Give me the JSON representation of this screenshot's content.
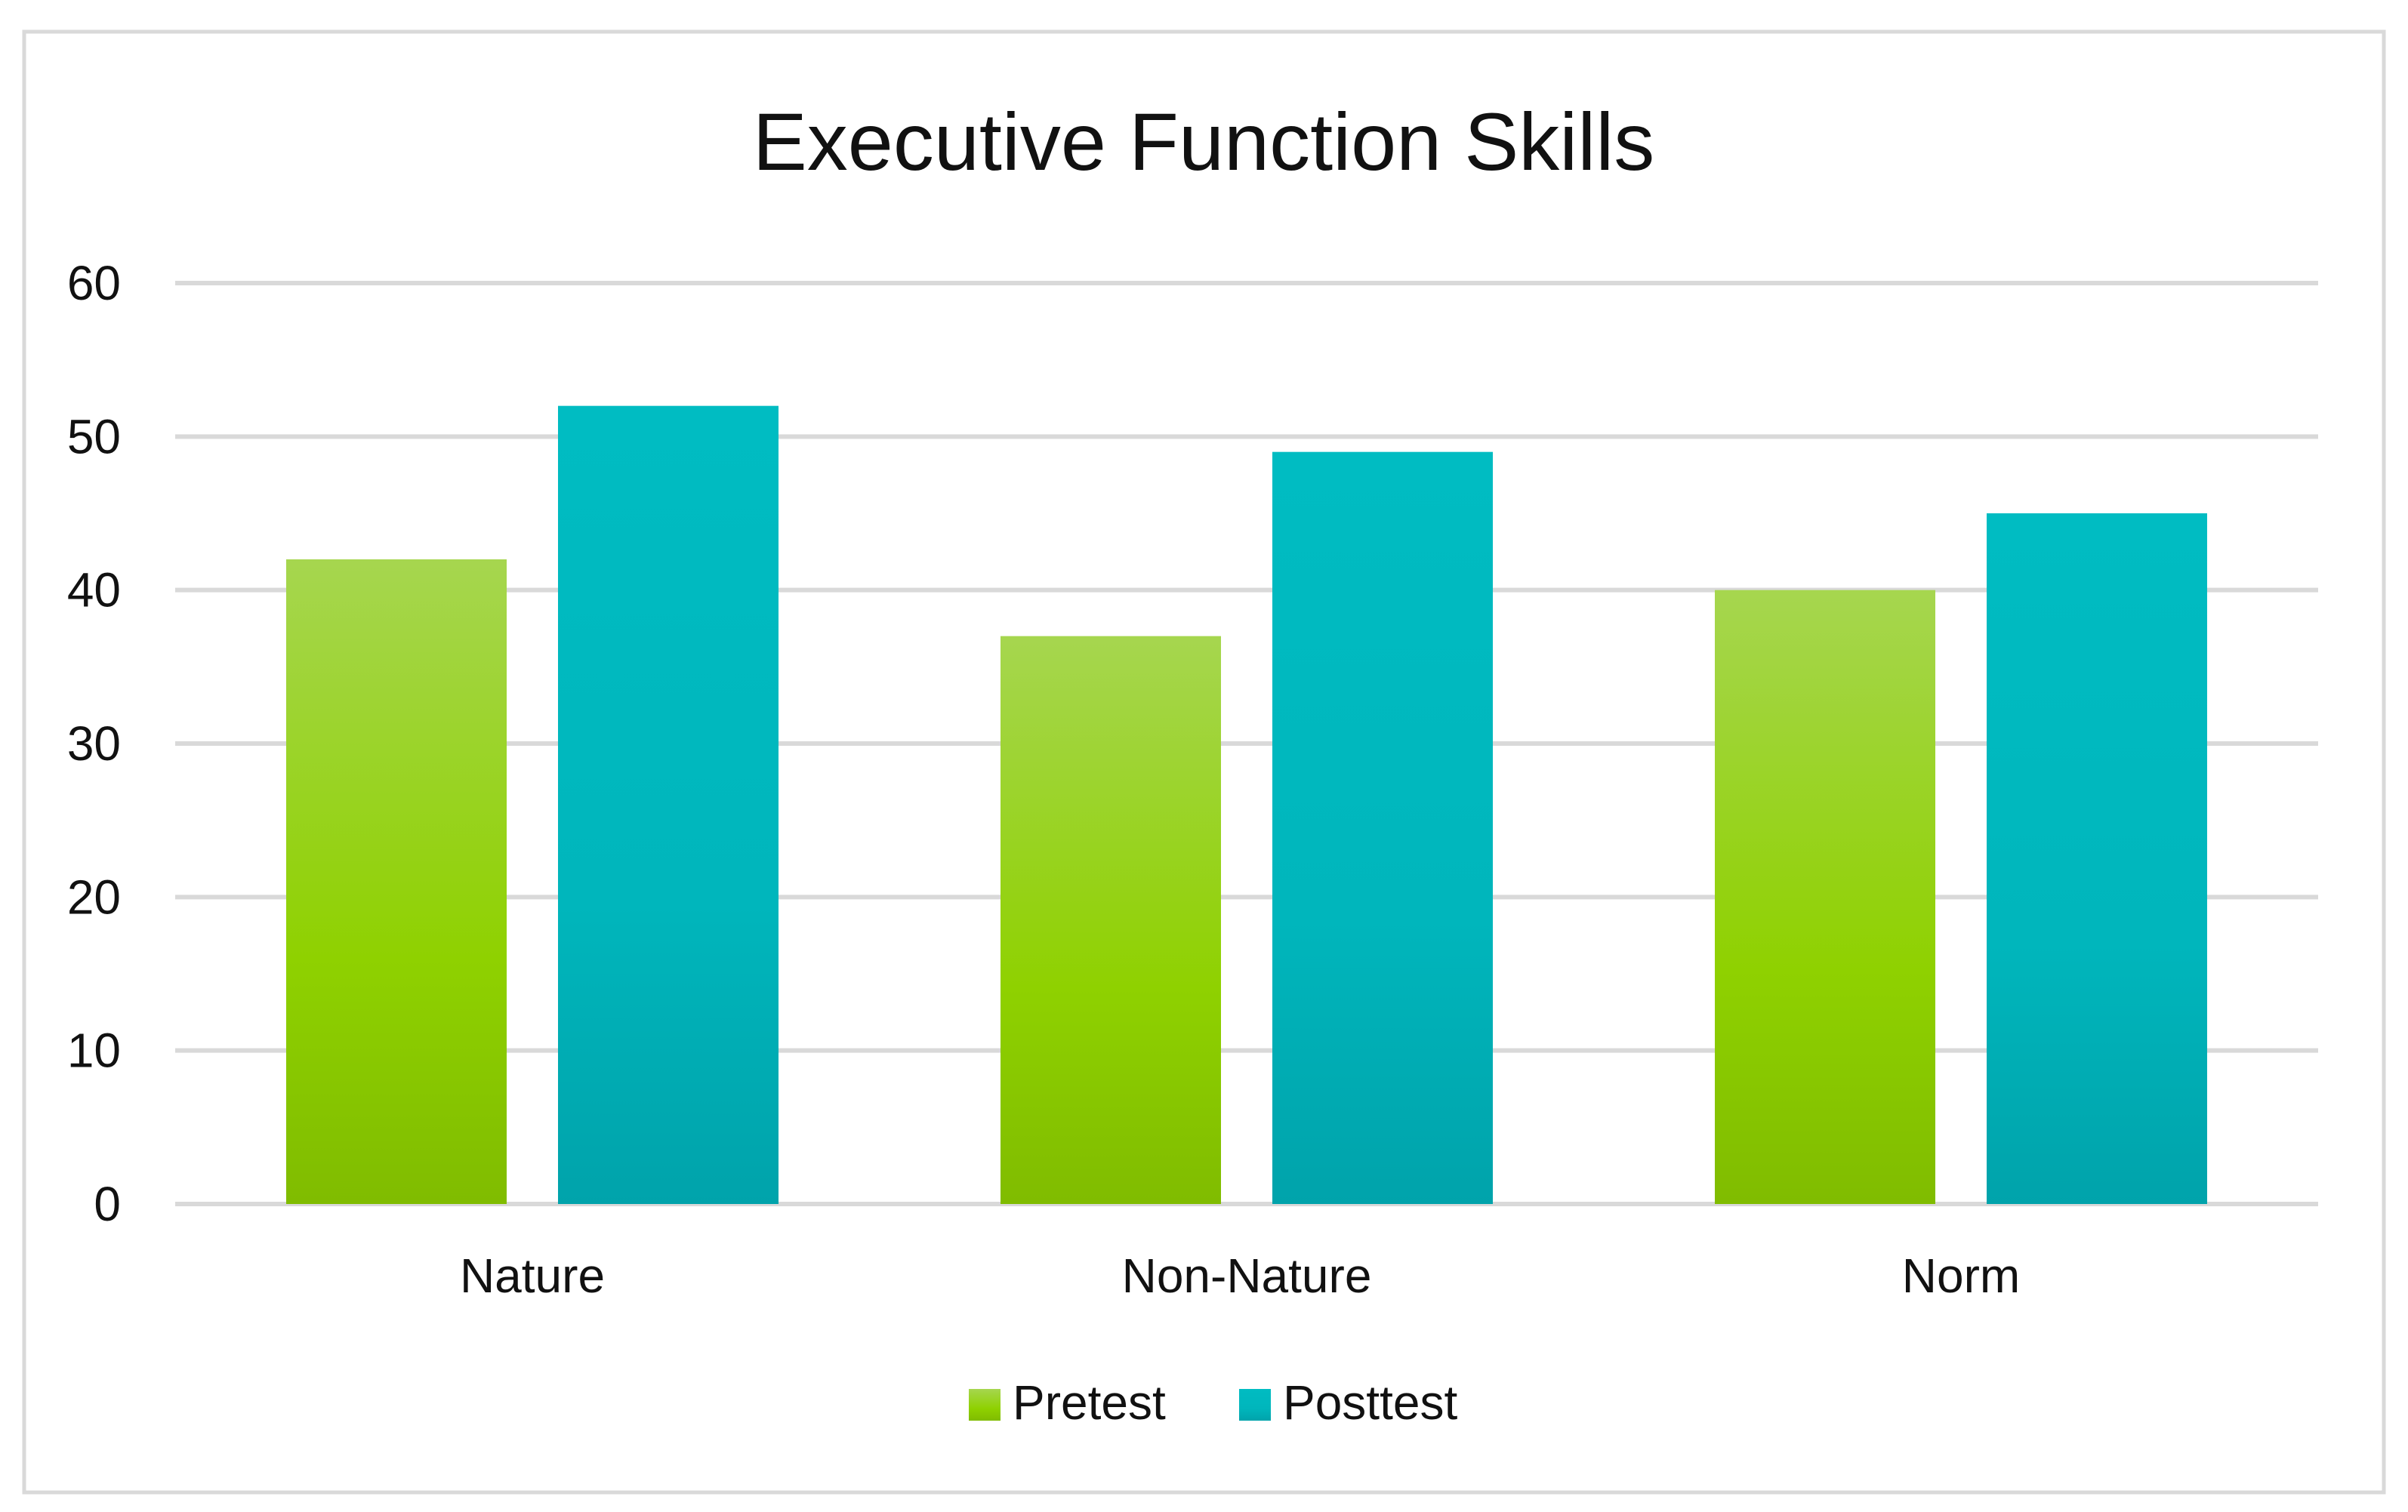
{
  "chart_data": {
    "type": "bar",
    "title": "Executive Function Skills",
    "xlabel": "",
    "ylabel": "",
    "categories": [
      "Nature",
      "Non-Nature",
      "Norm"
    ],
    "series": [
      {
        "name": "Pretest",
        "values": [
          42,
          37,
          40
        ],
        "color": "#8fcf00",
        "gradient": [
          "#a6d64f",
          "#8fd100",
          "#80bc00"
        ]
      },
      {
        "name": "Posttest",
        "values": [
          52,
          49,
          45
        ],
        "color": "#00b8be",
        "gradient": [
          "#00bcc2",
          "#00b6bc",
          "#00a3ab"
        ]
      }
    ],
    "ylim": [
      0,
      60
    ],
    "yticks": [
      0,
      10,
      20,
      30,
      40,
      50,
      60
    ],
    "grid": true,
    "legend": "bottom"
  },
  "colors": {
    "gridline": "#d9d9d9",
    "border": "#d9d9d9",
    "text": "#111111"
  }
}
